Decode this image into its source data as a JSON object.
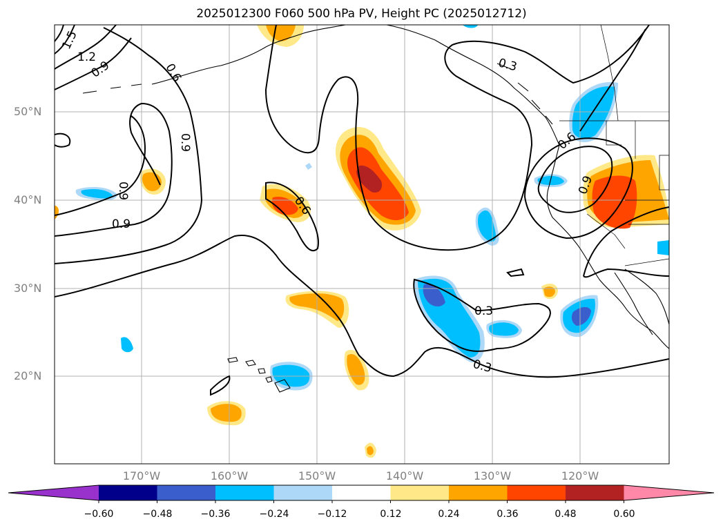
{
  "title": "2025012300 F060 500 hPa PV, Height PC (2025012712)",
  "lat_labels": [
    "50°N",
    "40°N",
    "30°N",
    "20°N"
  ],
  "lon_labels": [
    "170°W",
    "160°W",
    "150°W",
    "140°W",
    "130°W",
    "120°W"
  ],
  "contour_labels": [
    "1.5",
    "1.2",
    "0.9",
    "0.6",
    "0.9",
    "0.9",
    "0.9",
    "0.6",
    "0.3",
    "0.6",
    "0.9",
    "0.3",
    "0.3"
  ],
  "colorbar": {
    "ticks": [
      "−0.60",
      "−0.48",
      "−0.36",
      "−0.24",
      "−0.12",
      "0.12",
      "0.24",
      "0.36",
      "0.48",
      "0.60"
    ],
    "colors": [
      "#9932CC",
      "#00008B",
      "#3A5FCD",
      "#00BFFF",
      "#ADD8F7",
      "#FFFFFF",
      "#FFE888",
      "#FFA500",
      "#FF4500",
      "#B22222",
      "#FF88A8"
    ]
  },
  "colors": {
    "pos_light": "#FFE888",
    "pos_mid": "#FFA500",
    "pos_strong": "#FF4500",
    "pos_max": "#B22222",
    "neg_light": "#ADD8F7",
    "neg_mid": "#00BFFF",
    "neg_strong": "#3A5FCD",
    "grid": "#B0B0B0",
    "contour": "#000000"
  }
}
